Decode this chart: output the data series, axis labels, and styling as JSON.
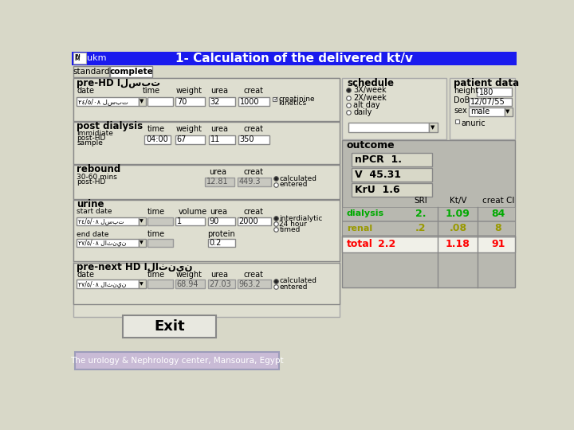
{
  "title": "1- Calculation of the delivered kt/v",
  "title_bg": "#1a1aee",
  "title_fg": "#ffffff",
  "main_bg": "#d8d8c8",
  "logo_text": "ukm",
  "tab1": "standard",
  "tab2": "complete",
  "footer_text": "The urology & Nephrology center, Mansoura, Egypt",
  "pre_hd_label": "pre-HD السبت",
  "post_dialysis_label": "post dialysis",
  "rebound_label": "rebound",
  "urine_label": "urine",
  "pre_next_label": "pre-next HD الاثنين",
  "schedule_label": "schedule",
  "patient_data_label": "patient data",
  "outcome_label": "outcome",
  "panel_bg": "#deded0",
  "outcome_bg": "#b8b8b0",
  "input_bg": "#ffffff",
  "gray_input_bg": "#c8c8c0",
  "npcr_box_bg": "#d8d8c8",
  "total_row_bg": "#f0f0e8",
  "footer_bg": "#c8b8d8",
  "footer_border": "#9898b8"
}
